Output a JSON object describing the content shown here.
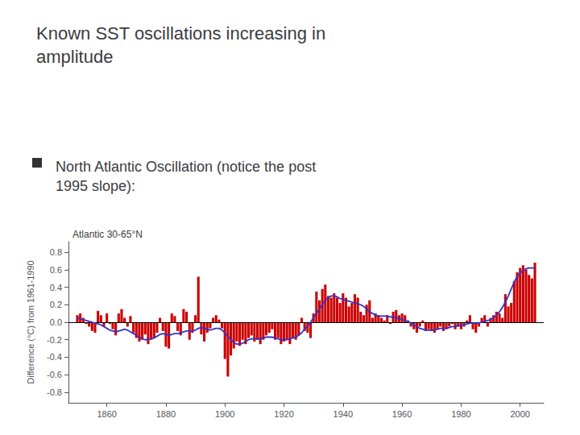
{
  "chart_data": {
    "type": "bar",
    "title": "Known SST oscillations increasing in\namplitude",
    "annotations": [
      "North Atlantic Oscillation (notice the post\n1995 slope):"
    ],
    "subtitle": "Atlantic 30-65°N",
    "ylabel": "Difference (°C) from 1961-1990",
    "x": [
      1850,
      1851,
      1852,
      1853,
      1854,
      1855,
      1856,
      1857,
      1858,
      1859,
      1860,
      1861,
      1862,
      1863,
      1864,
      1865,
      1866,
      1867,
      1868,
      1869,
      1870,
      1871,
      1872,
      1873,
      1874,
      1875,
      1876,
      1877,
      1878,
      1879,
      1880,
      1881,
      1882,
      1883,
      1884,
      1885,
      1886,
      1887,
      1888,
      1889,
      1890,
      1891,
      1892,
      1893,
      1894,
      1895,
      1896,
      1897,
      1898,
      1899,
      1900,
      1901,
      1902,
      1903,
      1904,
      1905,
      1906,
      1907,
      1908,
      1909,
      1910,
      1911,
      1912,
      1913,
      1914,
      1915,
      1916,
      1917,
      1918,
      1919,
      1920,
      1921,
      1922,
      1923,
      1924,
      1925,
      1926,
      1927,
      1928,
      1929,
      1930,
      1931,
      1932,
      1933,
      1934,
      1935,
      1936,
      1937,
      1938,
      1939,
      1940,
      1941,
      1942,
      1943,
      1944,
      1945,
      1946,
      1947,
      1948,
      1949,
      1950,
      1951,
      1952,
      1953,
      1954,
      1955,
      1956,
      1957,
      1958,
      1959,
      1960,
      1961,
      1962,
      1963,
      1964,
      1965,
      1966,
      1967,
      1968,
      1969,
      1970,
      1971,
      1972,
      1973,
      1974,
      1975,
      1976,
      1977,
      1978,
      1979,
      1980,
      1981,
      1982,
      1983,
      1984,
      1985,
      1986,
      1987,
      1988,
      1989,
      1990,
      1991,
      1992,
      1993,
      1994,
      1995,
      1996,
      1997,
      1998,
      1999,
      2000,
      2001,
      2002,
      2003,
      2004,
      2005
    ],
    "series": [
      {
        "type": "bar",
        "color": "#cc0000",
        "values": [
          0.08,
          0.1,
          0.05,
          -0.02,
          -0.05,
          -0.1,
          -0.12,
          0.13,
          0.08,
          -0.05,
          0.1,
          -0.02,
          -0.08,
          -0.15,
          0.1,
          0.15,
          0.05,
          -0.05,
          0.07,
          -0.12,
          -0.18,
          -0.22,
          -0.2,
          -0.14,
          -0.25,
          -0.2,
          -0.18,
          -0.12,
          0.05,
          -0.1,
          -0.28,
          -0.3,
          0.1,
          0.07,
          -0.1,
          -0.15,
          0.15,
          0.12,
          -0.2,
          -0.12,
          0.08,
          0.52,
          -0.14,
          -0.22,
          -0.12,
          -0.07,
          0.05,
          0.08,
          0.03,
          -0.07,
          -0.42,
          -0.62,
          -0.38,
          -0.3,
          -0.22,
          -0.27,
          -0.2,
          -0.25,
          -0.18,
          -0.15,
          -0.22,
          -0.2,
          -0.25,
          -0.2,
          -0.15,
          -0.12,
          -0.08,
          -0.2,
          -0.18,
          -0.25,
          -0.22,
          -0.2,
          -0.25,
          -0.18,
          -0.2,
          -0.15,
          0.05,
          -0.1,
          -0.12,
          -0.18,
          0.1,
          0.35,
          0.25,
          0.38,
          0.43,
          0.3,
          0.28,
          0.33,
          0.28,
          0.22,
          0.33,
          0.28,
          0.18,
          0.22,
          0.32,
          0.28,
          0.12,
          0.08,
          0.2,
          0.25,
          0.05,
          0.1,
          0.08,
          0.05,
          0.02,
          0.08,
          -0.02,
          0.12,
          0.14,
          0.08,
          0.1,
          0.08,
          0.02,
          -0.05,
          -0.08,
          -0.12,
          -0.05,
          0.02,
          -0.1,
          -0.08,
          -0.1,
          -0.12,
          -0.08,
          -0.05,
          -0.1,
          -0.08,
          -0.05,
          -0.02,
          -0.08,
          -0.05,
          -0.08,
          -0.05,
          0.02,
          0.08,
          -0.08,
          -0.12,
          -0.05,
          0.05,
          0.08,
          -0.05,
          0.05,
          0.08,
          0.12,
          0.1,
          0.05,
          0.32,
          0.18,
          0.22,
          0.47,
          0.57,
          0.62,
          0.65,
          0.6,
          0.54,
          0.5,
          0.68
        ]
      },
      {
        "type": "line",
        "color": "#3333cc",
        "values": [
          0.05,
          0.04,
          0.03,
          0.02,
          0.01,
          0.0,
          -0.01,
          -0.02,
          -0.03,
          -0.05,
          -0.07,
          -0.09,
          -0.1,
          -0.11,
          -0.1,
          -0.09,
          -0.08,
          -0.09,
          -0.11,
          -0.13,
          -0.15,
          -0.17,
          -0.19,
          -0.2,
          -0.2,
          -0.19,
          -0.18,
          -0.16,
          -0.14,
          -0.13,
          -0.14,
          -0.15,
          -0.14,
          -0.13,
          -0.13,
          -0.12,
          -0.11,
          -0.1,
          -0.1,
          -0.1,
          -0.09,
          -0.07,
          -0.06,
          -0.07,
          -0.08,
          -0.09,
          -0.08,
          -0.07,
          -0.07,
          -0.09,
          -0.12,
          -0.16,
          -0.2,
          -0.23,
          -0.25,
          -0.25,
          -0.24,
          -0.22,
          -0.2,
          -0.19,
          -0.19,
          -0.19,
          -0.19,
          -0.18,
          -0.17,
          -0.17,
          -0.17,
          -0.18,
          -0.19,
          -0.2,
          -0.2,
          -0.2,
          -0.19,
          -0.18,
          -0.17,
          -0.15,
          -0.12,
          -0.08,
          -0.04,
          0.0,
          0.05,
          0.1,
          0.15,
          0.2,
          0.25,
          0.28,
          0.3,
          0.3,
          0.29,
          0.27,
          0.26,
          0.25,
          0.24,
          0.23,
          0.22,
          0.21,
          0.2,
          0.18,
          0.15,
          0.12,
          0.1,
          0.08,
          0.07,
          0.07,
          0.07,
          0.07,
          0.06,
          0.06,
          0.05,
          0.04,
          0.03,
          0.02,
          0.01,
          -0.01,
          -0.03,
          -0.05,
          -0.07,
          -0.08,
          -0.09,
          -0.09,
          -0.09,
          -0.09,
          -0.08,
          -0.07,
          -0.07,
          -0.07,
          -0.06,
          -0.05,
          -0.05,
          -0.04,
          -0.04,
          -0.03,
          -0.02,
          -0.01,
          -0.01,
          -0.01,
          -0.01,
          0.0,
          0.01,
          0.02,
          0.03,
          0.05,
          0.08,
          0.12,
          0.17,
          0.23,
          0.3,
          0.38,
          0.46,
          0.52,
          0.56,
          0.59,
          0.61,
          0.62,
          0.62,
          0.62
        ]
      }
    ],
    "xlim": [
      1847,
      2008
    ],
    "xticks": [
      1860,
      1880,
      1900,
      1920,
      1940,
      1960,
      1980,
      2000
    ],
    "ylim": [
      -0.92,
      0.92
    ],
    "yticks": [
      -0.8,
      -0.6,
      -0.4,
      -0.2,
      {
        "value": 0,
        "label": "0.0"
      },
      0.2,
      0.4,
      0.6,
      0.8
    ],
    "grid": false
  }
}
